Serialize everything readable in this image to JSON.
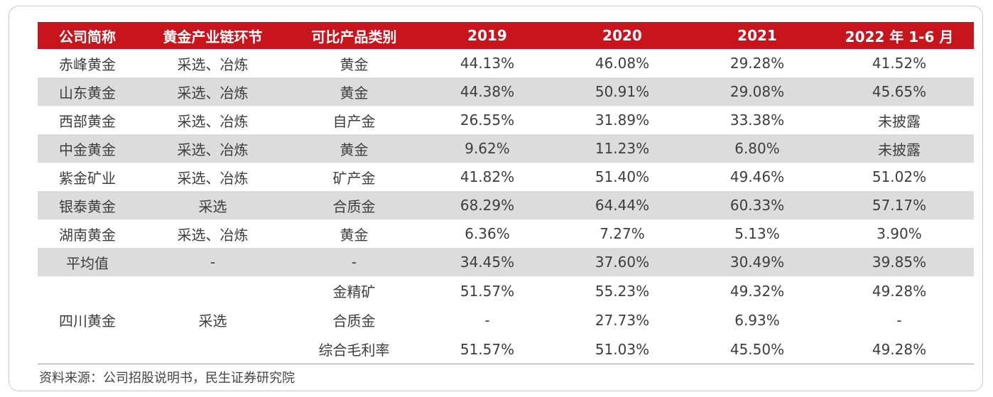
{
  "headers": [
    "公司简称",
    "黄金产业链环节",
    "可比产品类别",
    "2019",
    "2020",
    "2021",
    "2022 年 1-6 月"
  ],
  "rows": [
    {
      "company": "赤峰黄金",
      "chain": "采选、冶炼",
      "product": "黄金",
      "y2019": "44.13%",
      "y2020": "46.08%",
      "y2021": "29.28%",
      "y2022h1": "41.52%"
    },
    {
      "company": "山东黄金",
      "chain": "采选、冶炼",
      "product": "黄金",
      "y2019": "44.38%",
      "y2020": "50.91%",
      "y2021": "29.08%",
      "y2022h1": "45.65%"
    },
    {
      "company": "西部黄金",
      "chain": "采选、冶炼",
      "product": "自产金",
      "y2019": "26.55%",
      "y2020": "31.89%",
      "y2021": "33.38%",
      "y2022h1": "未披露"
    },
    {
      "company": "中金黄金",
      "chain": "采选、冶炼",
      "product": "黄金",
      "y2019": "9.62%",
      "y2020": "11.23%",
      "y2021": "6.80%",
      "y2022h1": "未披露"
    },
    {
      "company": "紫金矿业",
      "chain": "采选、冶炼",
      "product": "矿产金",
      "y2019": "41.82%",
      "y2020": "51.40%",
      "y2021": "49.46%",
      "y2022h1": "51.02%"
    },
    {
      "company": "银泰黄金",
      "chain": "采选",
      "product": "合质金",
      "y2019": "68.29%",
      "y2020": "64.44%",
      "y2021": "60.33%",
      "y2022h1": "57.17%"
    },
    {
      "company": "湖南黄金",
      "chain": "采选、冶炼",
      "product": "黄金",
      "y2019": "6.36%",
      "y2020": "7.27%",
      "y2021": "5.13%",
      "y2022h1": "3.90%"
    },
    {
      "company": "平均值",
      "chain": "-",
      "product": "-",
      "y2019": "34.45%",
      "y2020": "37.60%",
      "y2021": "30.49%",
      "y2022h1": "39.85%"
    }
  ],
  "sichuan": {
    "company": "四川黄金",
    "chain": "采选",
    "subrows": [
      {
        "product": "金精矿",
        "y2019": "51.57%",
        "y2020": "55.23%",
        "y2021": "49.32%",
        "y2022h1": "49.28%"
      },
      {
        "product": "合质金",
        "y2019": "-",
        "y2020": "27.73%",
        "y2021": "6.93%",
        "y2022h1": "-"
      },
      {
        "product": "综合毛利率",
        "y2019": "51.57%",
        "y2020": "51.03%",
        "y2021": "45.50%",
        "y2022h1": "49.28%"
      }
    ]
  },
  "source": "资料来源：公司招股说明书，民生证券研究院",
  "colors": {
    "header_bg": "#c8141d",
    "shade": "#dcdcdc"
  }
}
